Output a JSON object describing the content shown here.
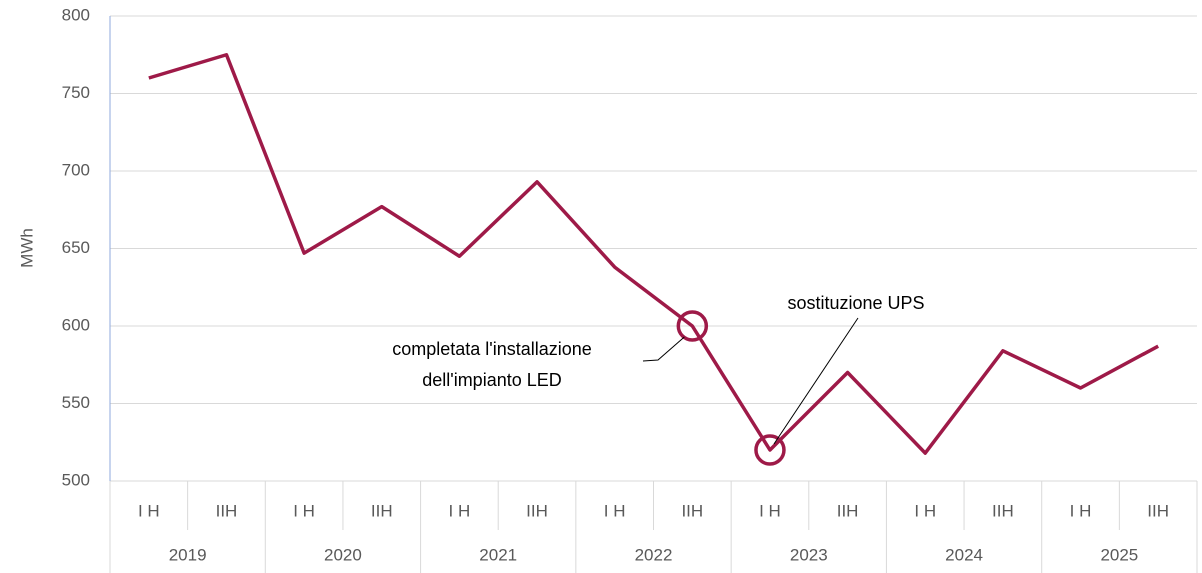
{
  "chart_data": {
    "type": "line",
    "y_label": "MWh",
    "categories": [
      "I H",
      "IIH",
      "I H",
      "IIH",
      "I H",
      "IIH",
      "I H",
      "IIH",
      "I H",
      "IIH",
      "I H",
      "IIH",
      "I H",
      "IIH"
    ],
    "groups": [
      "2019",
      "2020",
      "2021",
      "2022",
      "2023",
      "2024",
      "2025"
    ],
    "series": [
      {
        "name": "MWh",
        "color": "#9e1a48",
        "values": [
          760,
          775,
          647,
          677,
          645,
          693,
          638,
          600,
          520,
          570,
          518,
          584,
          560,
          587
        ]
      }
    ],
    "ylim": [
      500,
      800
    ],
    "yticks": [
      500,
      550,
      600,
      650,
      700,
      750,
      800
    ],
    "grid": true,
    "annotations": [
      {
        "lines": [
          "completata l'installazione",
          "dell'impianto LED"
        ]
      },
      {
        "lines": [
          "sostituzione UPS"
        ]
      }
    ]
  }
}
